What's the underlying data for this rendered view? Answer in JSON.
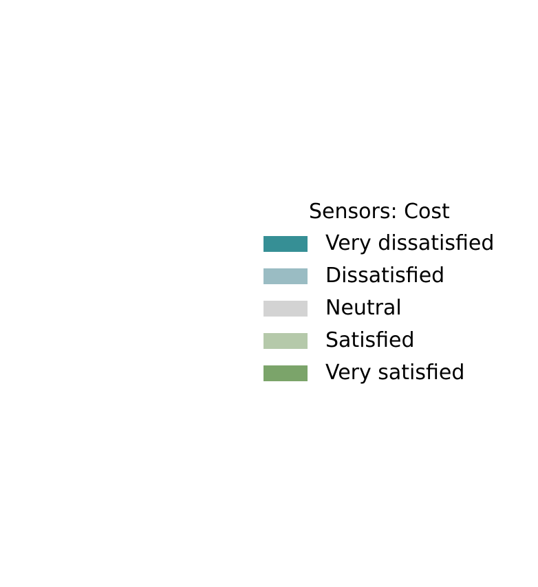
{
  "chart_data": {
    "type": "bar",
    "title": "",
    "legend": {
      "title": "Sensors: Cost",
      "placement": "right",
      "entries": [
        {
          "label": "Very dissatisfied",
          "color": "#368f95"
        },
        {
          "label": "Dissatisfied",
          "color": "#9abcc3"
        },
        {
          "label": "Neutral",
          "color": "#d3d3d3"
        },
        {
          "label": "Satisfied",
          "color": "#b5c9aa"
        },
        {
          "label": "Very satisfied",
          "color": "#7ba46a"
        }
      ]
    },
    "categories": [],
    "series": []
  }
}
